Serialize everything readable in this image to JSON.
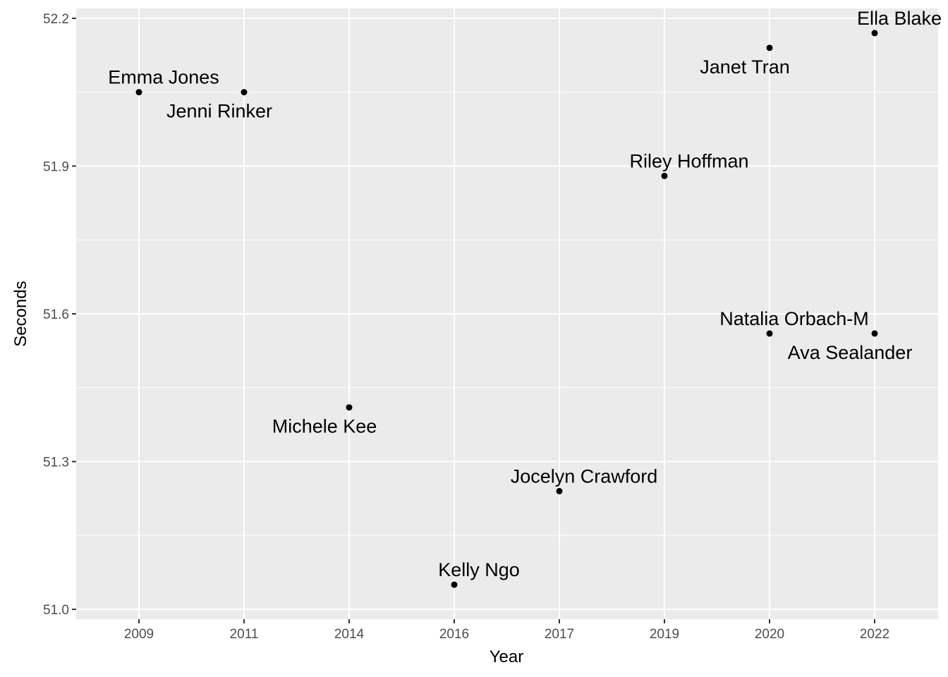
{
  "chart_data": {
    "type": "scatter",
    "xlabel": "Year",
    "ylabel": "Seconds",
    "x_axis_kind": "categorical",
    "categories": [
      "2009",
      "2011",
      "2014",
      "2016",
      "2017",
      "2019",
      "2020",
      "2022"
    ],
    "y_ticks": [
      51.0,
      51.3,
      51.6,
      51.9,
      52.2
    ],
    "y_tick_labels": [
      "51.0",
      "51.3",
      "51.6",
      "51.9",
      "52.2"
    ],
    "ylim": [
      50.98,
      52.22
    ],
    "grid": true,
    "background": "#ebebeb",
    "grid_color": "#ffffff",
    "point_color": "#000000",
    "points": [
      {
        "x": "2009",
        "y": 52.05,
        "label": "Emma Jones",
        "label_side": "above"
      },
      {
        "x": "2011",
        "y": 52.05,
        "label": "Jenni Rinker",
        "label_side": "below"
      },
      {
        "x": "2014",
        "y": 51.41,
        "label": "Michele Kee",
        "label_side": "below"
      },
      {
        "x": "2016",
        "y": 51.05,
        "label": "Kelly Ngo",
        "label_side": "above"
      },
      {
        "x": "2017",
        "y": 51.24,
        "label": "Jocelyn Crawford",
        "label_side": "above"
      },
      {
        "x": "2019",
        "y": 51.88,
        "label": "Riley Hoffman",
        "label_side": "above"
      },
      {
        "x": "2020",
        "y": 52.14,
        "label": "Janet Tran",
        "label_side": "below"
      },
      {
        "x": "2020",
        "y": 51.56,
        "label": "Natalia Orbach-M",
        "label_side": "above"
      },
      {
        "x": "2022",
        "y": 52.17,
        "label": "Ella Blake",
        "label_side": "above"
      },
      {
        "x": "2022",
        "y": 51.56,
        "label": "Ava Sealander",
        "label_side": "below"
      }
    ]
  }
}
